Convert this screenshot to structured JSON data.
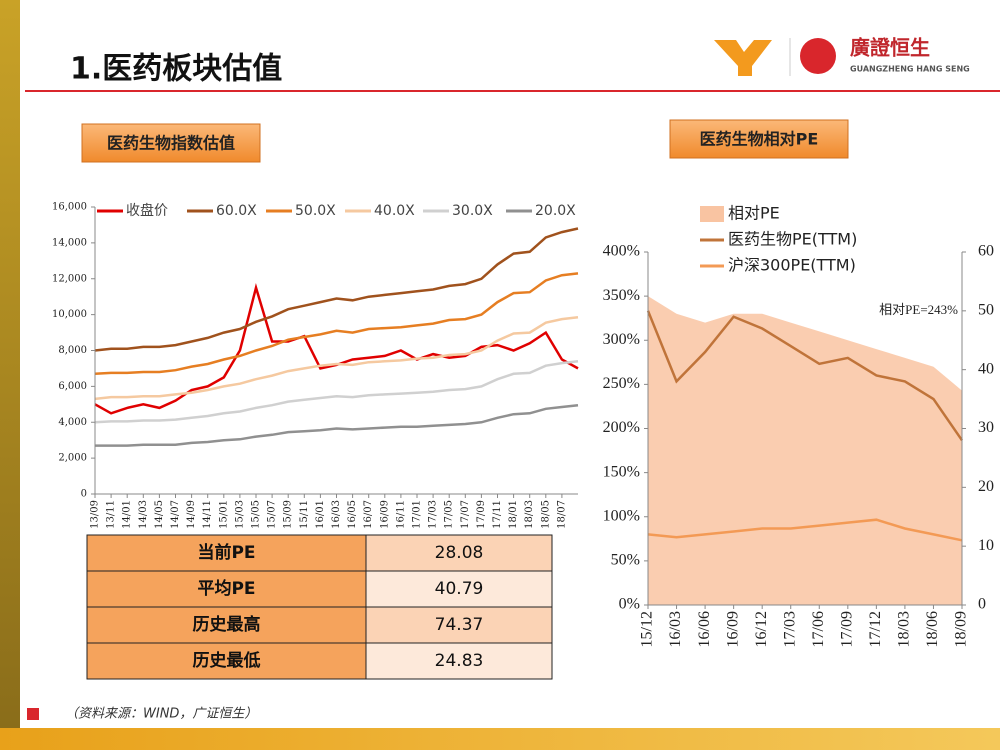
{
  "header": {
    "title": "1.医药板块估值",
    "logo_name": "廣證恒生",
    "logo_sub": "GUANGZHENG HANG SENG"
  },
  "chart_data": [
    {
      "type": "line",
      "title": "医药生物指数估值",
      "categories": [
        "13/09",
        "13/11",
        "14/01",
        "14/03",
        "14/05",
        "14/07",
        "14/09",
        "14/11",
        "15/01",
        "15/03",
        "15/05",
        "15/07",
        "15/09",
        "15/11",
        "16/01",
        "16/03",
        "16/05",
        "16/07",
        "16/09",
        "16/11",
        "17/01",
        "17/03",
        "17/05",
        "17/07",
        "17/09",
        "17/11",
        "18/01",
        "18/03",
        "18/05",
        "18/07",
        null
      ],
      "ylim": [
        0,
        16000
      ],
      "yticks": [
        0,
        {
          "value": 2000,
          "label": "2,000"
        },
        {
          "value": 4000,
          "label": "4,000"
        },
        {
          "value": 6000,
          "label": "6,000"
        },
        {
          "value": 8000,
          "label": "8,000"
        },
        {
          "value": 10000,
          "label": "10,000"
        },
        {
          "value": 12000,
          "label": "12,000"
        },
        {
          "value": 14000,
          "label": "14,000"
        },
        {
          "value": 16000,
          "label": "16,000"
        }
      ],
      "series": [
        {
          "name": "收盘价",
          "color": "#e00000",
          "values": [
            5000,
            4500,
            4800,
            5000,
            4800,
            5200,
            5800,
            6000,
            6500,
            8000,
            11500,
            8500,
            8500,
            8800,
            7000,
            7200,
            7500,
            7600,
            7700,
            8000,
            7500,
            7800,
            7600,
            7700,
            8200,
            8300,
            8000,
            8400,
            9000,
            7500,
            7000
          ]
        },
        {
          "name": "60.0X",
          "color": "#a0521d",
          "values": [
            8000,
            8100,
            8100,
            8200,
            8200,
            8300,
            8500,
            8700,
            9000,
            9200,
            9600,
            9900,
            10300,
            10500,
            10700,
            10900,
            10800,
            11000,
            11100,
            11200,
            11300,
            11400,
            11600,
            11700,
            12000,
            12800,
            13400,
            13500,
            14300,
            14600,
            14800
          ]
        },
        {
          "name": "50.0X",
          "color": "#e67e22",
          "values": [
            6700,
            6750,
            6750,
            6800,
            6800,
            6900,
            7100,
            7250,
            7500,
            7700,
            8000,
            8250,
            8600,
            8750,
            8900,
            9100,
            9000,
            9200,
            9250,
            9300,
            9400,
            9500,
            9700,
            9750,
            10000,
            10700,
            11200,
            11250,
            11900,
            12200,
            12300
          ]
        },
        {
          "name": "40.0X",
          "color": "#f5c9a0",
          "values": [
            5300,
            5400,
            5400,
            5450,
            5450,
            5550,
            5650,
            5800,
            6000,
            6150,
            6400,
            6600,
            6850,
            7000,
            7150,
            7250,
            7200,
            7350,
            7400,
            7450,
            7550,
            7600,
            7750,
            7800,
            8000,
            8550,
            8950,
            9000,
            9550,
            9750,
            9850
          ]
        },
        {
          "name": "30.0X",
          "color": "#d0d0d0",
          "values": [
            4000,
            4050,
            4050,
            4100,
            4100,
            4150,
            4250,
            4350,
            4500,
            4600,
            4800,
            4950,
            5150,
            5250,
            5350,
            5450,
            5400,
            5500,
            5550,
            5600,
            5650,
            5700,
            5800,
            5850,
            6000,
            6400,
            6700,
            6750,
            7150,
            7300,
            7400
          ]
        },
        {
          "name": "20.0X",
          "color": "#909090",
          "values": [
            2700,
            2700,
            2700,
            2750,
            2750,
            2750,
            2850,
            2900,
            3000,
            3050,
            3200,
            3300,
            3450,
            3500,
            3550,
            3650,
            3600,
            3650,
            3700,
            3750,
            3750,
            3800,
            3850,
            3900,
            4000,
            4250,
            4450,
            4500,
            4750,
            4850,
            4950
          ]
        }
      ]
    },
    {
      "type": "line",
      "title": "医药生物相对PE",
      "categories": [
        "15/12",
        "16/03",
        "16/06",
        "16/09",
        "16/12",
        "17/03",
        "17/06",
        "17/09",
        "17/12",
        "18/03",
        "18/06",
        "18/09"
      ],
      "ylim": [
        0,
        400
      ],
      "yticks": [
        {
          "value": 0,
          "label": "0%"
        },
        {
          "value": 50,
          "label": "50%"
        },
        {
          "value": 100,
          "label": "100%"
        },
        {
          "value": 150,
          "label": "150%"
        },
        {
          "value": 200,
          "label": "200%"
        },
        {
          "value": 250,
          "label": "250%"
        },
        {
          "value": 300,
          "label": "300%"
        },
        {
          "value": 350,
          "label": "350%"
        },
        {
          "value": 400,
          "label": "400%"
        }
      ],
      "y2lim": [
        0,
        60
      ],
      "y2ticks": [
        0,
        10,
        20,
        30,
        40,
        50,
        60
      ],
      "annotation": "相对PE=243%",
      "series": [
        {
          "name": "相对PE",
          "type": "area",
          "color": "#f9c4a2",
          "values": [
            350,
            330,
            320,
            330,
            330,
            320,
            310,
            300,
            290,
            280,
            270,
            243
          ]
        },
        {
          "name": "医药生物PE(TTM)",
          "axis": "y2",
          "color": "#c0743a",
          "values": [
            50,
            38,
            43,
            49,
            47,
            44,
            41,
            42,
            39,
            38,
            35,
            28
          ]
        },
        {
          "name": "沪深300PE(TTM)",
          "axis": "y2",
          "color": "#f39a55",
          "values": [
            12,
            11.5,
            12,
            12.5,
            13,
            13,
            13.5,
            14,
            14.5,
            13,
            12,
            11
          ]
        }
      ]
    }
  ],
  "table": {
    "rows": [
      [
        "当前PE",
        "28.08"
      ],
      [
        "平均PE",
        "40.79"
      ],
      [
        "历史最高",
        "74.37"
      ],
      [
        "历史最低",
        "24.83"
      ]
    ]
  },
  "source": "（资料来源：WIND，广证恒生）"
}
